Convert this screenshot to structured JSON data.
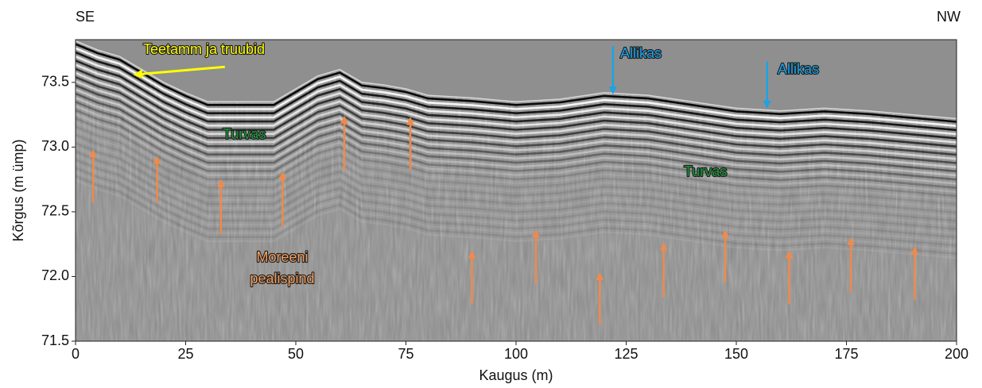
{
  "chart_data": {
    "type": "radargram",
    "left_label": "SE",
    "right_label": "NW",
    "ylabel": "Kõrgus (m ümp)",
    "xlabel": "Kaugus (m)",
    "xlim": [
      0,
      200
    ],
    "ylim": [
      71.5,
      73.83
    ],
    "xticks": [
      0,
      25,
      50,
      75,
      100,
      125,
      150,
      175,
      200
    ],
    "yticks": [
      71.5,
      {
        "value": 72,
        "label": "72.0"
      },
      72.5,
      {
        "value": 73,
        "label": "73.0"
      },
      73.5
    ],
    "surface": {
      "x": [
        0,
        5,
        10,
        15,
        20,
        25,
        30,
        35,
        45,
        50,
        55,
        60,
        65,
        70,
        75,
        80,
        90,
        100,
        110,
        120,
        130,
        140,
        150,
        160,
        170,
        180,
        190,
        200
      ],
      "y": [
        73.82,
        73.75,
        73.7,
        73.6,
        73.5,
        73.42,
        73.35,
        73.35,
        73.35,
        73.45,
        73.55,
        73.6,
        73.5,
        73.48,
        73.45,
        73.4,
        73.38,
        73.35,
        73.37,
        73.42,
        73.4,
        73.35,
        73.3,
        73.28,
        73.3,
        73.28,
        73.25,
        73.22
      ]
    },
    "annotations": [
      {
        "text": "Teetamm ja truubid",
        "color": "#ffff00"
      },
      {
        "text": "Allikas",
        "color": "#1aa3e8"
      },
      {
        "text": "Allikas",
        "color": "#1aa3e8"
      },
      {
        "text": "Turvas",
        "color": "#1a9a3a"
      },
      {
        "text": "Turvas",
        "color": "#1a9a3a"
      },
      {
        "text": "Moreeni",
        "color": "#f4a060"
      },
      {
        "text": "pealispind",
        "color": "#f4a060"
      }
    ],
    "orange_arrows": {
      "color": "#f08a4b",
      "x": [
        4,
        18.5,
        33,
        47,
        61,
        76,
        90,
        104.5,
        119,
        133.5,
        147.5,
        162,
        176,
        190.5
      ],
      "tip": [
        72.97,
        72.92,
        72.74,
        72.8,
        73.23,
        73.22,
        72.19,
        72.35,
        72.02,
        72.25,
        72.35,
        72.19,
        72.29,
        72.22
      ],
      "base": [
        72.57,
        72.57,
        72.33,
        72.39,
        72.82,
        72.82,
        71.79,
        71.94,
        71.63,
        71.84,
        71.95,
        71.79,
        71.88,
        71.82
      ]
    },
    "blue_arrows": {
      "color": "#1aa3e8",
      "x": [
        122,
        157
      ],
      "tip": [
        73.42,
        73.31
      ],
      "base": [
        73.78,
        73.66
      ]
    },
    "yellow_arrow": {
      "color": "#ffff00",
      "x": [
        33.9,
        13.5
      ],
      "y": [
        73.62,
        73.56
      ]
    }
  }
}
